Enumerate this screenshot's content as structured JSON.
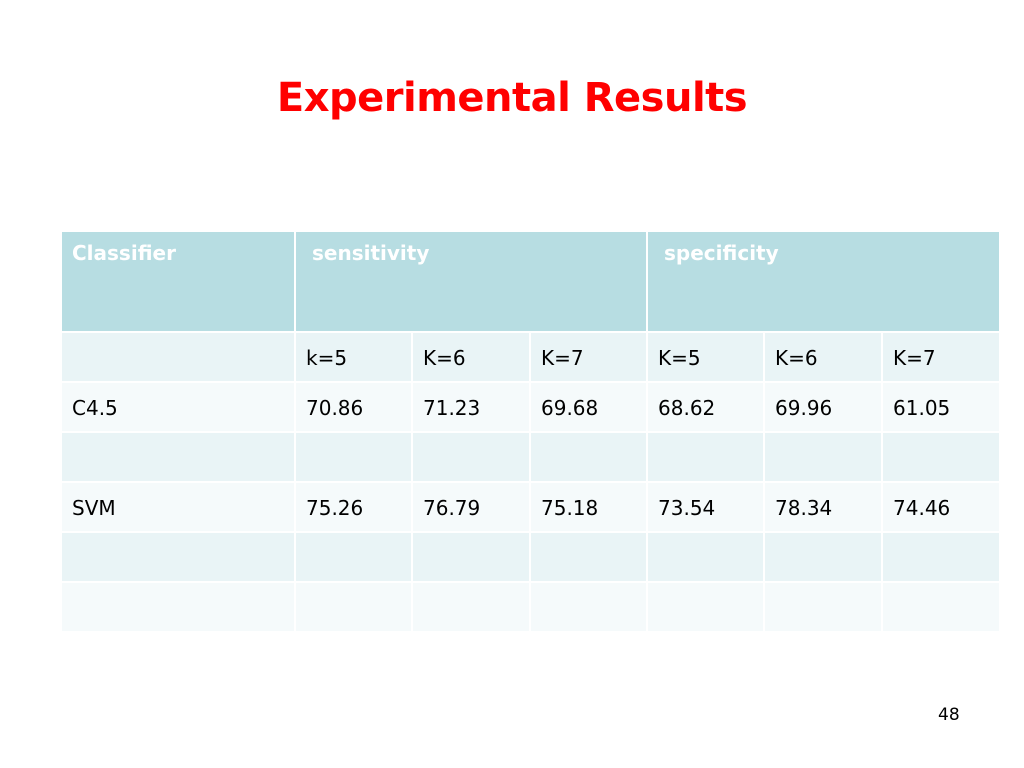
{
  "slide": {
    "title": "Experimental Results",
    "page_number": "48"
  },
  "colors": {
    "title": "#ff0000",
    "header_bg": "#b7dde2",
    "header_text": "#ffffff",
    "row_band_1": "#e9f4f6",
    "row_band_2": "#f5fafb"
  },
  "table": {
    "header": {
      "classifier": "Classifier",
      "sensitivity": "sensitivity",
      "specificity": "specificity"
    },
    "subheader": [
      "",
      "k=5",
      "K=6",
      "K=7",
      "K=5",
      "K=6",
      "K=7"
    ],
    "rows": [
      [
        "C4.5",
        "70.86",
        "71.23",
        "69.68",
        "68.62",
        "69.96",
        "61.05"
      ],
      [
        "",
        "",
        "",
        "",
        "",
        "",
        ""
      ],
      [
        "SVM",
        "75.26",
        "76.79",
        "75.18",
        "73.54",
        "78.34",
        "74.46"
      ],
      [
        "",
        "",
        "",
        "",
        "",
        "",
        ""
      ],
      [
        "",
        "",
        "",
        "",
        "",
        "",
        ""
      ]
    ]
  }
}
